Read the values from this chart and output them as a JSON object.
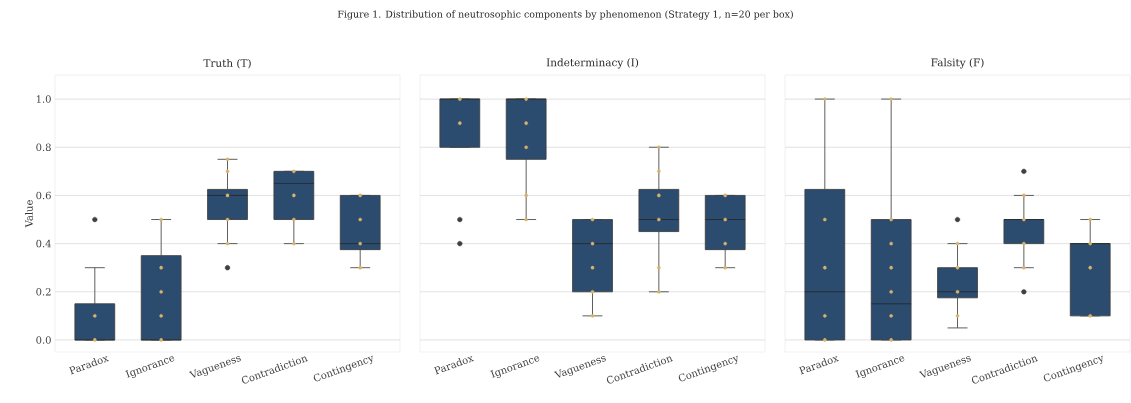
{
  "chart_data": [
    {
      "type": "box",
      "title": "Truth (T)",
      "ylabel": "Value",
      "annotations": [
        "Figure 1. Distribution of neutrosophic components by phenomenon (Strategy 1, n=20 per box)"
      ],
      "categories": [
        "Paradox",
        "Ignorance",
        "Vagueness",
        "Contradiction",
        "Contingency"
      ],
      "ylim": [
        -0.05,
        1.1
      ],
      "yticks": [
        {
          "value": 0,
          "label": "0.0"
        },
        0.2,
        0.4,
        0.6,
        0.8,
        {
          "value": 1,
          "label": "1.0"
        }
      ],
      "grid": "y",
      "series": [
        {
          "type": "box",
          "color": "#2b4c6f",
          "boxes": [
            {
              "low": 0,
              "q1": 0,
              "median": 0,
              "q3": 0.15,
              "high": 0.3,
              "outliers": [
                0.5
              ]
            },
            {
              "low": 0,
              "q1": 0,
              "median": 0,
              "q3": 0.35,
              "high": 0.5
            },
            {
              "low": 0.4,
              "q1": 0.5,
              "median": 0.6,
              "q3": 0.625,
              "high": 0.75,
              "outliers": [
                0.3
              ]
            },
            {
              "low": 0.4,
              "q1": 0.5,
              "median": 0.65,
              "q3": 0.7,
              "high": 0.7
            },
            {
              "low": 0.3,
              "q1": 0.375,
              "median": 0.4,
              "q3": 0.6,
              "high": 0.6
            }
          ]
        },
        {
          "type": "scatter",
          "color": "#d9b26a",
          "marker": "circle",
          "x": [
            "Paradox",
            "Paradox",
            "Ignorance",
            "Ignorance",
            "Ignorance",
            "Ignorance",
            "Ignorance",
            "Vagueness",
            "Vagueness",
            "Vagueness",
            "Vagueness",
            "Vagueness",
            "Contradiction",
            "Contradiction",
            "Contradiction",
            "Contradiction",
            "Contingency",
            "Contingency",
            "Contingency",
            "Contingency"
          ],
          "values": [
            0,
            0.1,
            0,
            0.1,
            0.2,
            0.3,
            0.5,
            0.4,
            0.5,
            0.6,
            0.7,
            0.75,
            0.4,
            0.5,
            0.6,
            0.7,
            0.3,
            0.4,
            0.5,
            0.6
          ]
        }
      ]
    },
    {
      "type": "box",
      "title": "Indeterminacy (I)",
      "tick_labels": "x",
      "categories": [
        "Paradox",
        "Ignorance",
        "Vagueness",
        "Contradiction",
        "Contingency"
      ],
      "ylim": [
        -0.05,
        1.1
      ],
      "yticks": [
        0,
        0.2,
        0.4,
        0.6,
        0.8,
        1
      ],
      "grid": "y",
      "series": [
        {
          "type": "box",
          "color": "#2b4c6f",
          "boxes": [
            {
              "low": 0.8,
              "q1": 0.8,
              "median": 1.0,
              "q3": 1.0,
              "high": 1.0,
              "outliers": [
                0.5,
                0.4
              ]
            },
            {
              "low": 0.5,
              "q1": 0.75,
              "median": 1.0,
              "q3": 1.0,
              "high": 1.0
            },
            {
              "low": 0.1,
              "q1": 0.2,
              "median": 0.4,
              "q3": 0.5,
              "high": 0.5
            },
            {
              "low": 0.2,
              "q1": 0.45,
              "median": 0.5,
              "q3": 0.625,
              "high": 0.8
            },
            {
              "low": 0.3,
              "q1": 0.375,
              "median": 0.5,
              "q3": 0.6,
              "high": 0.6
            }
          ]
        },
        {
          "type": "scatter",
          "color": "#d9b26a",
          "marker": "circle",
          "x": [
            "Paradox",
            "Paradox",
            "Ignorance",
            "Ignorance",
            "Ignorance",
            "Ignorance",
            "Ignorance",
            "Vagueness",
            "Vagueness",
            "Vagueness",
            "Vagueness",
            "Vagueness",
            "Contradiction",
            "Contradiction",
            "Contradiction",
            "Contradiction",
            "Contradiction",
            "Contradiction",
            "Contingency",
            "Contingency",
            "Contingency",
            "Contingency"
          ],
          "values": [
            0.9,
            1.0,
            0.5,
            0.6,
            0.8,
            0.9,
            1.0,
            0.1,
            0.2,
            0.3,
            0.4,
            0.5,
            0.2,
            0.3,
            0.5,
            0.6,
            0.7,
            0.8,
            0.3,
            0.4,
            0.5,
            0.6
          ]
        }
      ]
    },
    {
      "type": "box",
      "title": "Falsity (F)",
      "tick_labels": "x",
      "categories": [
        "Paradox",
        "Ignorance",
        "Vagueness",
        "Contradiction",
        "Contingency"
      ],
      "ylim": [
        -0.05,
        1.1
      ],
      "yticks": [
        0,
        0.2,
        0.4,
        0.6,
        0.8,
        1
      ],
      "grid": "y",
      "series": [
        {
          "type": "box",
          "color": "#2b4c6f",
          "boxes": [
            {
              "low": 0,
              "q1": 0,
              "median": 0.2,
              "q3": 0.625,
              "high": 1.0
            },
            {
              "low": 0,
              "q1": 0,
              "median": 0.15,
              "q3": 0.5,
              "high": 1.0
            },
            {
              "low": 0.05,
              "q1": 0.175,
              "median": 0.2,
              "q3": 0.3,
              "high": 0.4,
              "outliers": [
                0.5
              ]
            },
            {
              "low": 0.3,
              "q1": 0.4,
              "median": 0.5,
              "q3": 0.5,
              "high": 0.6,
              "outliers": [
                0.7,
                0.2
              ]
            },
            {
              "low": 0.1,
              "q1": 0.1,
              "median": 0.4,
              "q3": 0.4,
              "high": 0.5
            }
          ]
        },
        {
          "type": "scatter",
          "color": "#d9b26a",
          "marker": "circle",
          "x": [
            "Paradox",
            "Paradox",
            "Paradox",
            "Paradox",
            "Paradox",
            "Ignorance",
            "Ignorance",
            "Ignorance",
            "Ignorance",
            "Ignorance",
            "Ignorance",
            "Ignorance",
            "Vagueness",
            "Vagueness",
            "Vagueness",
            "Vagueness",
            "Contradiction",
            "Contradiction",
            "Contradiction",
            "Contradiction",
            "Contingency",
            "Contingency",
            "Contingency",
            "Contingency"
          ],
          "values": [
            0,
            0.1,
            0.3,
            0.5,
            1.0,
            0,
            0.1,
            0.2,
            0.3,
            0.4,
            0.5,
            1.0,
            0.1,
            0.2,
            0.3,
            0.4,
            0.3,
            0.4,
            0.5,
            0.6,
            0.1,
            0.3,
            0.4,
            0.5
          ]
        }
      ]
    }
  ]
}
